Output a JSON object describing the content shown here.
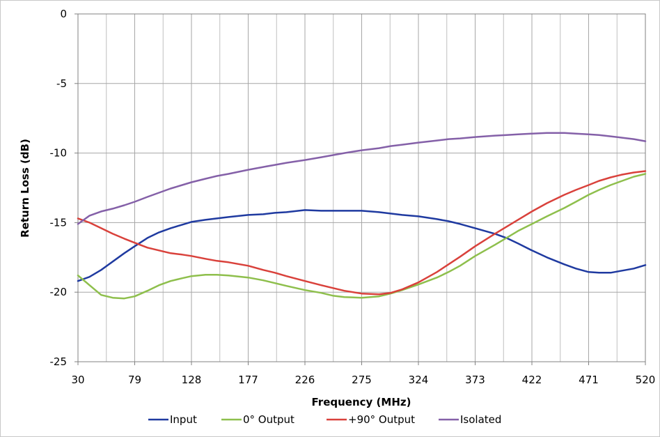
{
  "chart_data": {
    "type": "line",
    "title": "",
    "xlabel": "Frequency (MHz)",
    "ylabel": "Return Loss (dB)",
    "xlim": [
      30,
      520
    ],
    "ylim": [
      -25,
      0
    ],
    "xticks": [
      30,
      79,
      128,
      177,
      226,
      275,
      324,
      373,
      422,
      471,
      520
    ],
    "xtick_labels": [
      "30",
      "79",
      "128",
      "177",
      "226",
      "275",
      "324",
      "373",
      "422",
      "471",
      "520"
    ],
    "yticks": [
      0,
      -5,
      -10,
      -15,
      -20,
      -25
    ],
    "ytick_labels": [
      "0",
      "-5",
      "-10",
      "-15",
      "-20",
      "-25"
    ],
    "grid": true,
    "legend_position": "bottom",
    "series": [
      {
        "name": "Input",
        "color": "#1f3aa0",
        "x": [
          30,
          40,
          50,
          60,
          70,
          79,
          90,
          100,
          110,
          120,
          128,
          140,
          150,
          160,
          177,
          190,
          200,
          210,
          226,
          240,
          250,
          260,
          275,
          290,
          300,
          310,
          324,
          340,
          350,
          360,
          373,
          390,
          400,
          410,
          422,
          435,
          450,
          460,
          471,
          480,
          490,
          500,
          510,
          520
        ],
        "y": [
          -19.2,
          -18.9,
          -18.4,
          -17.8,
          -17.2,
          -16.7,
          -16.1,
          -15.7,
          -15.4,
          -15.15,
          -14.95,
          -14.8,
          -14.7,
          -14.6,
          -14.45,
          -14.4,
          -14.3,
          -14.25,
          -14.1,
          -14.15,
          -14.15,
          -14.15,
          -14.15,
          -14.25,
          -14.35,
          -14.45,
          -14.55,
          -14.75,
          -14.9,
          -15.1,
          -15.4,
          -15.8,
          -16.1,
          -16.5,
          -17.0,
          -17.5,
          -18.0,
          -18.3,
          -18.55,
          -18.6,
          -18.6,
          -18.45,
          -18.3,
          -18.05
        ]
      },
      {
        "name": "0° Output",
        "color": "#8ebf4c",
        "x": [
          30,
          40,
          50,
          60,
          70,
          79,
          90,
          100,
          110,
          120,
          128,
          140,
          150,
          160,
          177,
          190,
          200,
          210,
          226,
          240,
          250,
          260,
          275,
          290,
          300,
          310,
          324,
          340,
          350,
          360,
          373,
          390,
          400,
          410,
          422,
          435,
          450,
          460,
          471,
          480,
          490,
          500,
          510,
          520
        ],
        "y": [
          -18.8,
          -19.5,
          -20.2,
          -20.4,
          -20.45,
          -20.3,
          -19.9,
          -19.5,
          -19.2,
          -19.0,
          -18.85,
          -18.75,
          -18.75,
          -18.8,
          -18.95,
          -19.15,
          -19.35,
          -19.55,
          -19.85,
          -20.05,
          -20.25,
          -20.35,
          -20.4,
          -20.3,
          -20.1,
          -19.85,
          -19.45,
          -18.95,
          -18.55,
          -18.1,
          -17.4,
          -16.6,
          -16.1,
          -15.6,
          -15.1,
          -14.55,
          -13.95,
          -13.5,
          -13.0,
          -12.65,
          -12.3,
          -12.0,
          -11.7,
          -11.5
        ]
      },
      {
        "name": "+90° Output",
        "color": "#d9413b",
        "x": [
          30,
          40,
          50,
          60,
          70,
          79,
          90,
          100,
          110,
          120,
          128,
          140,
          150,
          160,
          177,
          190,
          200,
          210,
          226,
          240,
          250,
          260,
          275,
          290,
          300,
          310,
          324,
          340,
          350,
          360,
          373,
          390,
          400,
          410,
          422,
          435,
          450,
          460,
          471,
          480,
          490,
          500,
          510,
          520
        ],
        "y": [
          -14.7,
          -15.0,
          -15.4,
          -15.8,
          -16.15,
          -16.45,
          -16.8,
          -17.0,
          -17.2,
          -17.3,
          -17.4,
          -17.6,
          -17.75,
          -17.85,
          -18.1,
          -18.4,
          -18.6,
          -18.85,
          -19.2,
          -19.5,
          -19.7,
          -19.9,
          -20.1,
          -20.15,
          -20.05,
          -19.8,
          -19.3,
          -18.55,
          -18.0,
          -17.45,
          -16.7,
          -15.8,
          -15.3,
          -14.8,
          -14.2,
          -13.6,
          -13.0,
          -12.65,
          -12.3,
          -12.0,
          -11.75,
          -11.55,
          -11.4,
          -11.3
        ]
      },
      {
        "name": "Isolated",
        "color": "#8460a8",
        "x": [
          30,
          40,
          50,
          60,
          70,
          79,
          90,
          100,
          110,
          120,
          128,
          140,
          150,
          160,
          177,
          190,
          200,
          210,
          226,
          240,
          250,
          260,
          275,
          290,
          300,
          310,
          324,
          340,
          350,
          360,
          373,
          390,
          400,
          410,
          422,
          435,
          450,
          460,
          471,
          480,
          490,
          500,
          510,
          520
        ],
        "y": [
          -15.1,
          -14.5,
          -14.2,
          -14.0,
          -13.75,
          -13.5,
          -13.15,
          -12.85,
          -12.55,
          -12.3,
          -12.1,
          -11.85,
          -11.65,
          -11.5,
          -11.2,
          -11.0,
          -10.85,
          -10.7,
          -10.5,
          -10.3,
          -10.15,
          -10.0,
          -9.8,
          -9.65,
          -9.5,
          -9.4,
          -9.25,
          -9.1,
          -9.0,
          -8.95,
          -8.85,
          -8.75,
          -8.7,
          -8.65,
          -8.6,
          -8.55,
          -8.55,
          -8.6,
          -8.65,
          -8.7,
          -8.8,
          -8.9,
          -9.0,
          -9.15
        ]
      }
    ]
  }
}
